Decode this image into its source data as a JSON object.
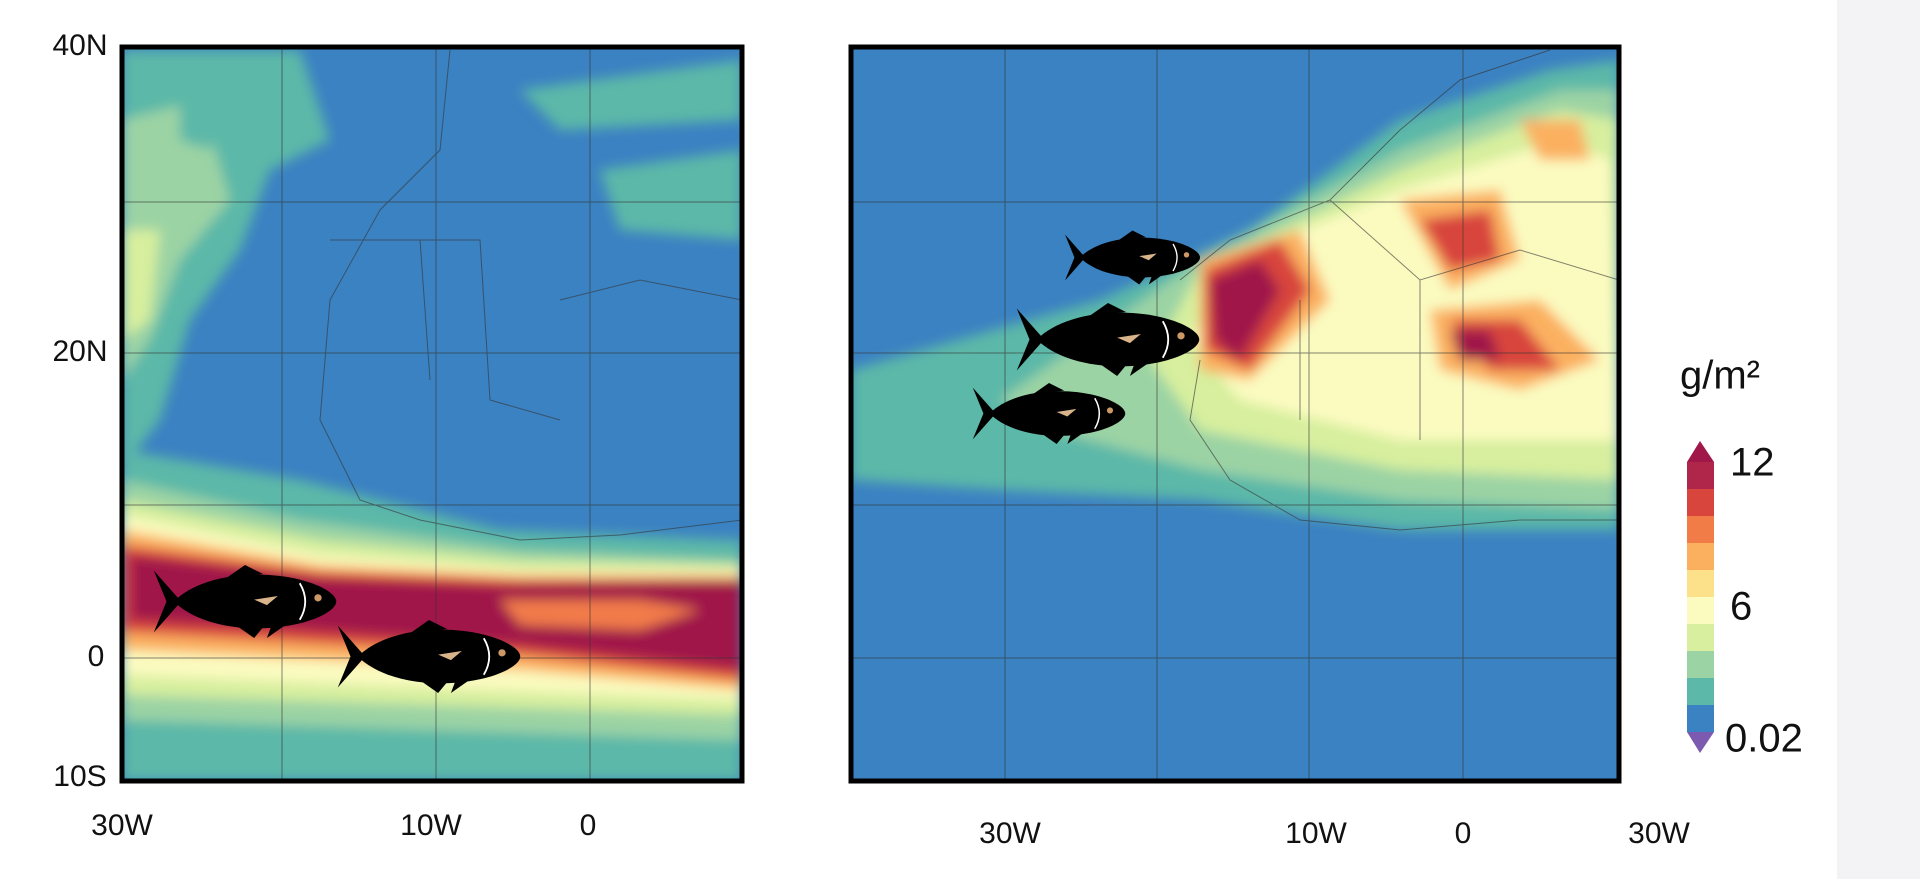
{
  "left_map": {
    "y_labels": [
      "40N",
      "20N",
      "0",
      "10S"
    ],
    "x_labels": [
      "30W",
      "10W",
      "0"
    ]
  },
  "right_map": {
    "x_labels": [
      "30W",
      "10W",
      "0",
      "30W"
    ]
  },
  "colorbar": {
    "unit": "g/m²",
    "ticks": [
      "12",
      "6",
      "0.02"
    ]
  }
}
